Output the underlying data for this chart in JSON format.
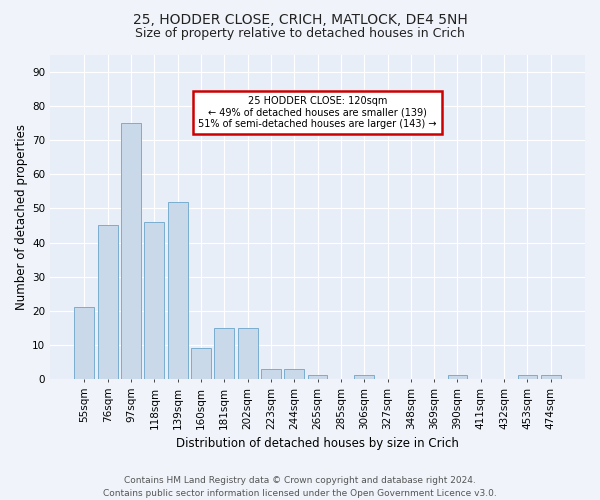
{
  "title1": "25, HODDER CLOSE, CRICH, MATLOCK, DE4 5NH",
  "title2": "Size of property relative to detached houses in Crich",
  "xlabel": "Distribution of detached houses by size in Crich",
  "ylabel": "Number of detached properties",
  "categories": [
    "55sqm",
    "76sqm",
    "97sqm",
    "118sqm",
    "139sqm",
    "160sqm",
    "181sqm",
    "202sqm",
    "223sqm",
    "244sqm",
    "265sqm",
    "285sqm",
    "306sqm",
    "327sqm",
    "348sqm",
    "369sqm",
    "390sqm",
    "411sqm",
    "432sqm",
    "453sqm",
    "474sqm"
  ],
  "values": [
    21,
    45,
    75,
    46,
    52,
    9,
    15,
    15,
    3,
    3,
    1,
    0,
    1,
    0,
    0,
    0,
    1,
    0,
    0,
    1,
    1
  ],
  "bar_color": "#c9d9ea",
  "bar_edge_color": "#7aadcf",
  "annotation_text": "25 HODDER CLOSE: 120sqm\n← 49% of detached houses are smaller (139)\n51% of semi-detached houses are larger (143) →",
  "annotation_box_facecolor": "#ffffff",
  "annotation_box_edgecolor": "#cc0000",
  "ylim": [
    0,
    95
  ],
  "yticks": [
    0,
    10,
    20,
    30,
    40,
    50,
    60,
    70,
    80,
    90
  ],
  "bg_color": "#f0f4fa",
  "plot_bg_color": "#e8eef8",
  "grid_color": "#ffffff",
  "footer": "Contains HM Land Registry data © Crown copyright and database right 2024.\nContains public sector information licensed under the Open Government Licence v3.0.",
  "title1_fontsize": 10,
  "title2_fontsize": 9,
  "xlabel_fontsize": 8.5,
  "ylabel_fontsize": 8.5,
  "tick_fontsize": 7.5,
  "footer_fontsize": 6.5
}
